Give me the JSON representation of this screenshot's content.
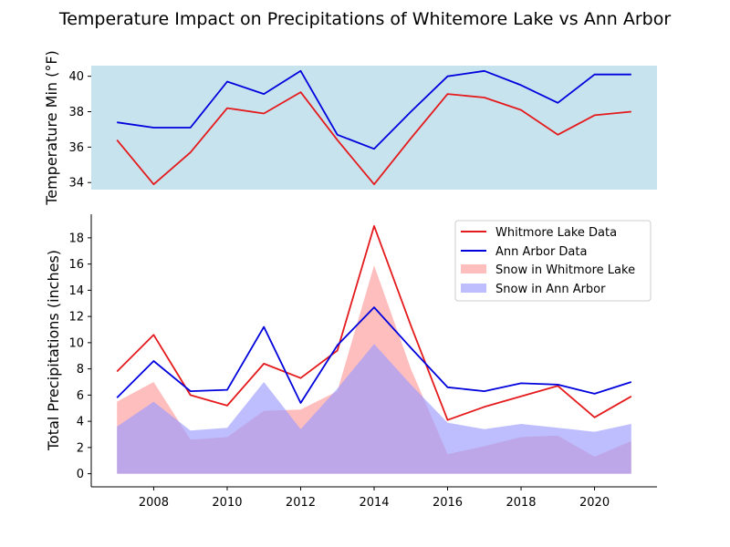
{
  "chart_data": {
    "title": "Temperature Impact on Precipitations of Whitemore Lake vs Ann Arbor",
    "years": [
      2007,
      2008,
      2009,
      2010,
      2011,
      2012,
      2013,
      2014,
      2015,
      2016,
      2017,
      2018,
      2019,
      2020,
      2021
    ],
    "x_ticks": [
      2008,
      2010,
      2012,
      2014,
      2016,
      2018,
      2020
    ],
    "colors": {
      "whitmore": "#e41a1c",
      "annarbor": "#0000dd",
      "snow_whitmore": "#ff9b9b",
      "snow_annarbor": "#9b9bff",
      "top_panel_bg": "#c7e3ee"
    },
    "charts": [
      {
        "type": "line",
        "ylabel": "Temperature Min (°F)",
        "ylim": [
          33.6,
          40.6
        ],
        "y_ticks": [
          34,
          36,
          38,
          40
        ],
        "grid": false,
        "series": [
          {
            "name": "Whitmore Lake Data",
            "color_key": "whitmore",
            "values": [
              36.4,
              33.9,
              35.7,
              38.2,
              37.9,
              39.1,
              36.4,
              33.9,
              36.5,
              39.0,
              38.8,
              38.1,
              36.7,
              37.8,
              38.0
            ]
          },
          {
            "name": "Ann Arbor Data",
            "color_key": "annarbor",
            "values": [
              37.4,
              37.1,
              37.1,
              39.7,
              39.0,
              40.3,
              36.7,
              35.9,
              38.0,
              40.0,
              40.3,
              39.5,
              38.5,
              40.1,
              40.1
            ]
          }
        ]
      },
      {
        "type": "line+area",
        "ylabel": "Total Precipitations (inches)",
        "ylim": [
          -1,
          19.8
        ],
        "y_ticks": [
          0,
          2,
          4,
          6,
          8,
          10,
          12,
          14,
          16,
          18
        ],
        "grid": false,
        "legend_position": "top-right",
        "series": [
          {
            "name": "Whitmore Lake Data",
            "kind": "line",
            "color_key": "whitmore",
            "values": [
              7.8,
              10.6,
              6.0,
              5.2,
              8.4,
              7.3,
              9.4,
              18.9,
              11.3,
              4.1,
              5.1,
              5.9,
              6.7,
              4.3,
              5.9
            ]
          },
          {
            "name": "Ann Arbor Data",
            "kind": "line",
            "color_key": "annarbor",
            "values": [
              5.8,
              8.6,
              6.3,
              6.4,
              11.2,
              5.4,
              9.8,
              12.7,
              9.6,
              6.6,
              6.3,
              6.9,
              6.8,
              6.1,
              7.0
            ]
          },
          {
            "name": "Snow in Whitmore Lake",
            "kind": "area",
            "color_key": "snow_whitmore",
            "values": [
              5.5,
              7.0,
              2.6,
              2.8,
              4.8,
              4.9,
              6.3,
              15.9,
              8.0,
              1.5,
              2.1,
              2.8,
              2.9,
              1.3,
              2.5
            ]
          },
          {
            "name": "Snow in Ann Arbor",
            "kind": "area",
            "color_key": "snow_annarbor",
            "values": [
              3.6,
              5.5,
              3.3,
              3.5,
              7.0,
              3.4,
              6.5,
              9.9,
              6.8,
              3.9,
              3.4,
              3.8,
              3.5,
              3.2,
              3.8
            ]
          }
        ]
      }
    ]
  }
}
